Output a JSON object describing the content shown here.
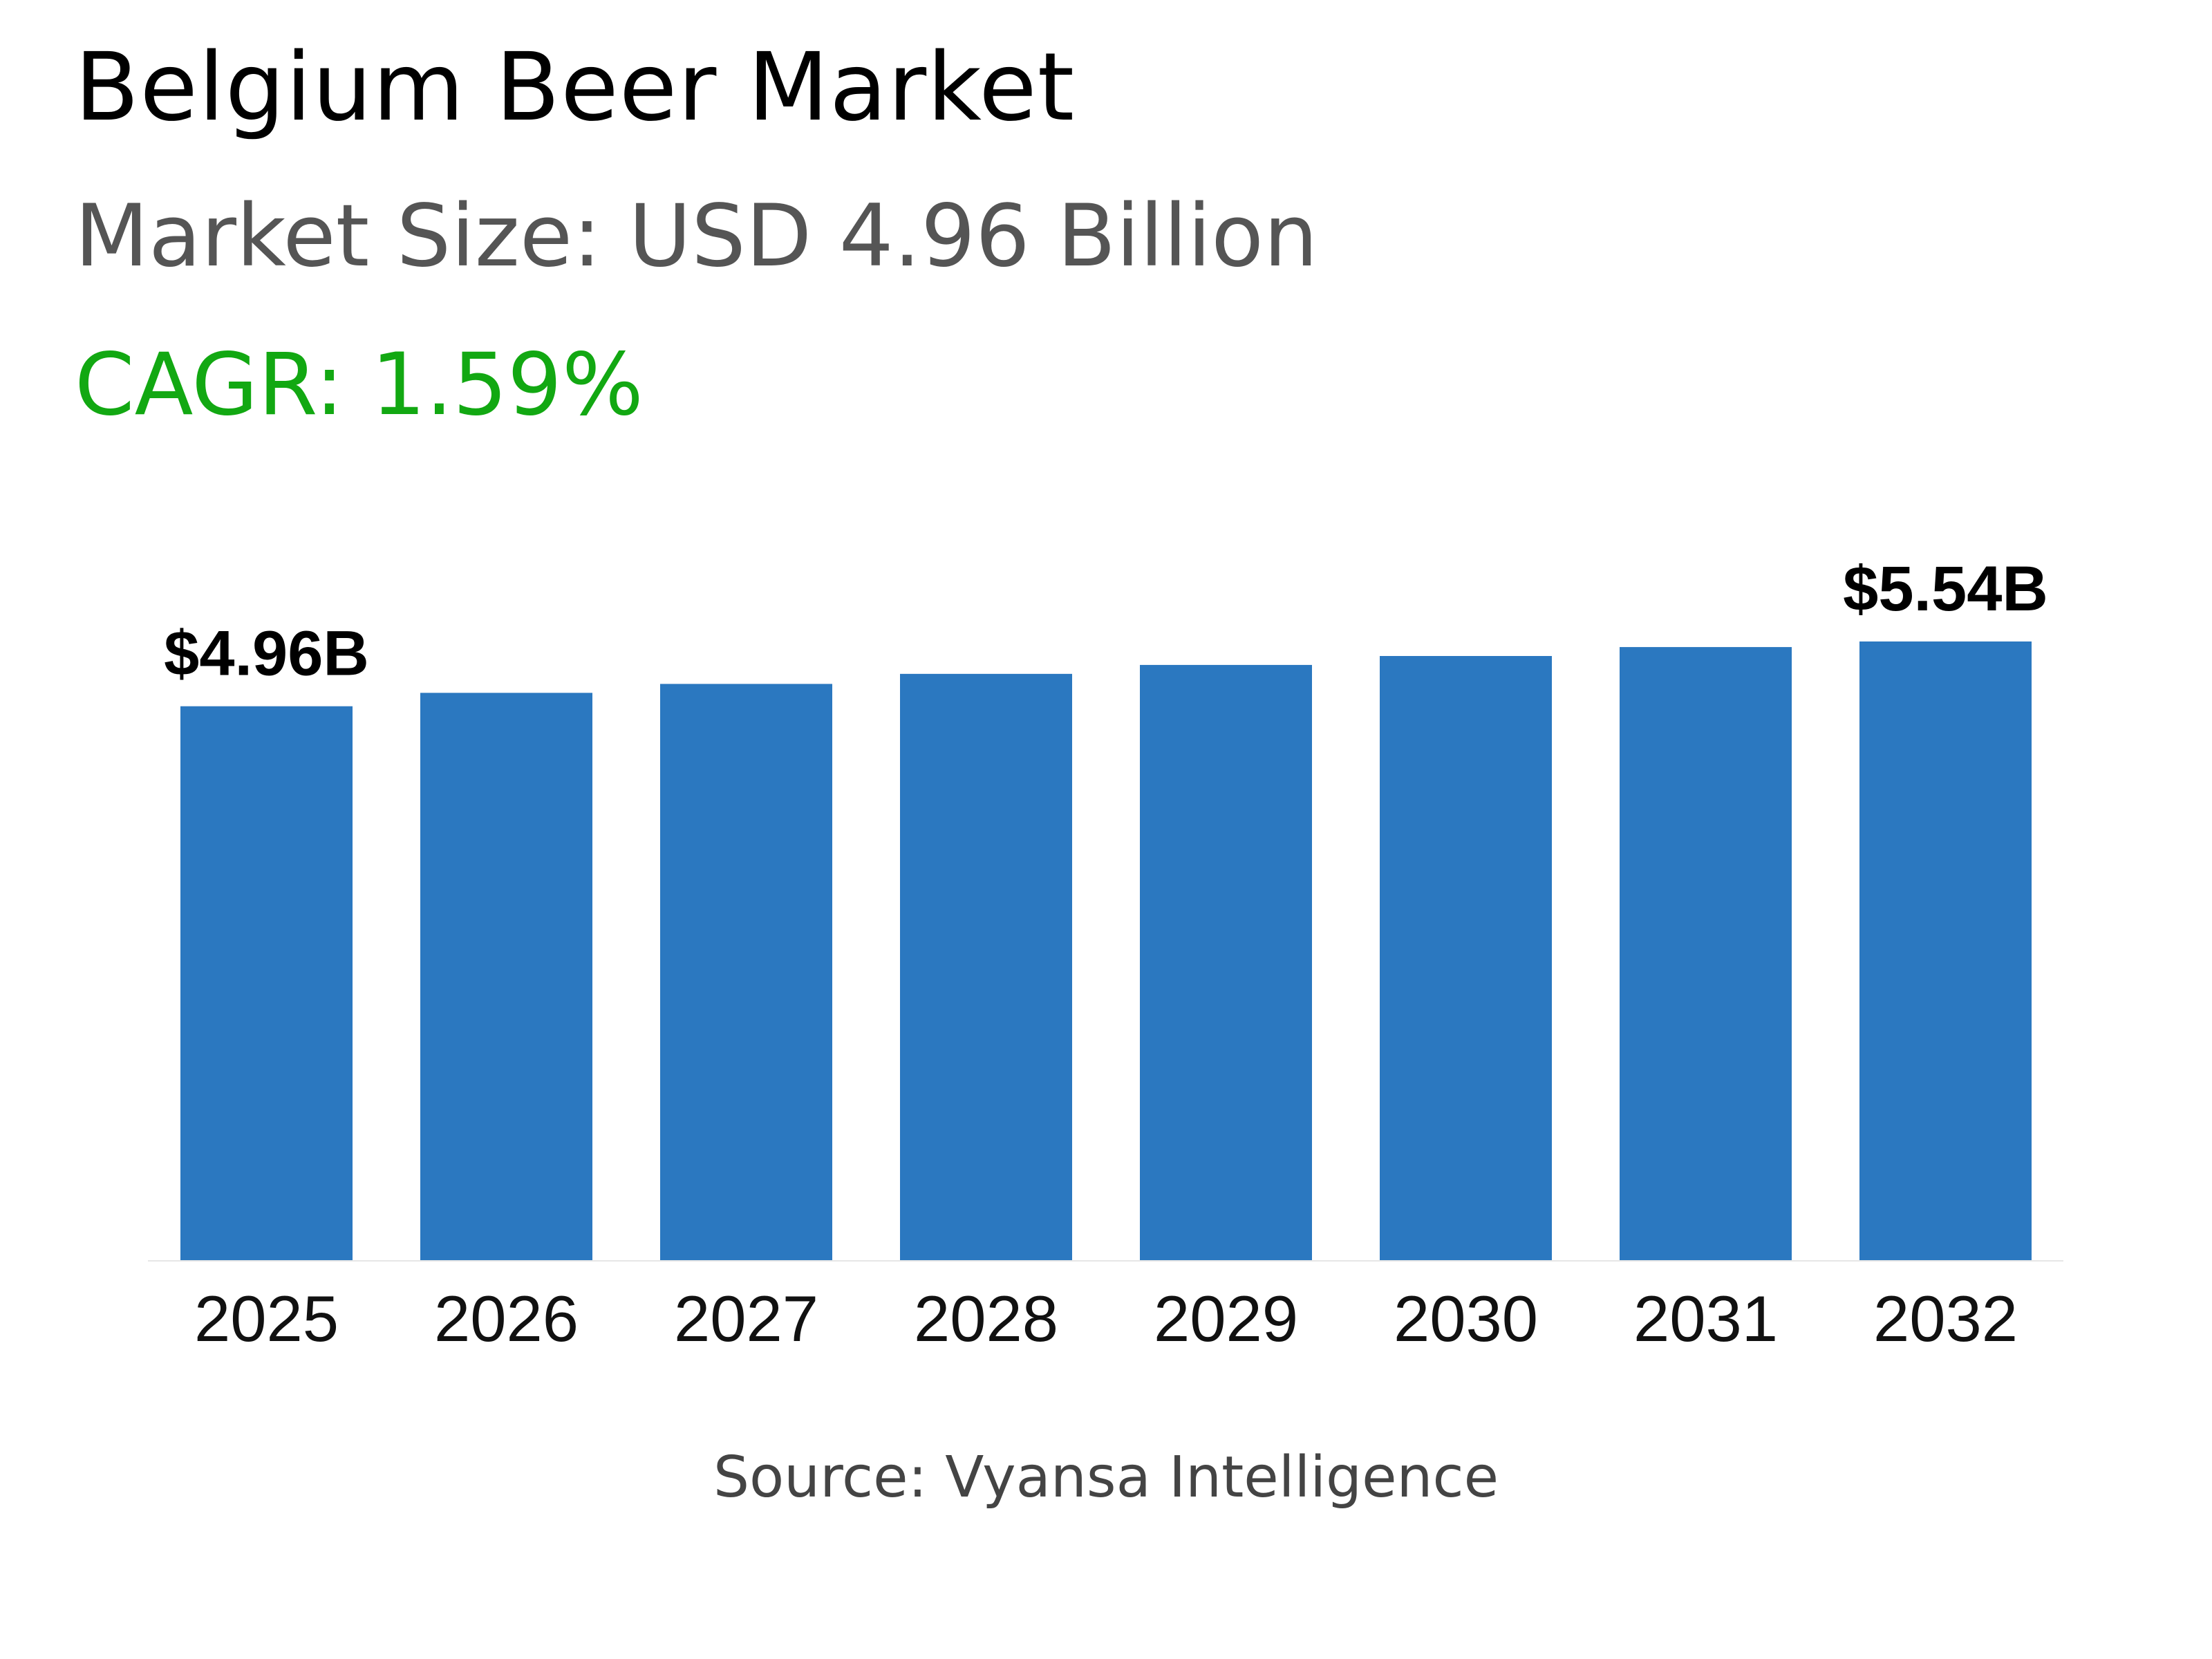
{
  "title": "Belgium Beer Market",
  "subtitle": "Market Size: USD 4.96 Billion",
  "cagr": "CAGR: 1.59%",
  "source": "Source: Vyansa Intelligence",
  "colors": {
    "bar": "#2b78c0",
    "cagr": "#12a812"
  },
  "chart_data": {
    "type": "bar",
    "categories": [
      "2025",
      "2026",
      "2027",
      "2028",
      "2029",
      "2030",
      "2031",
      "2032"
    ],
    "values": [
      4.96,
      5.08,
      5.16,
      5.25,
      5.33,
      5.41,
      5.49,
      5.54
    ],
    "data_labels": {
      "0": "$4.96B",
      "7": "$5.54B"
    },
    "ylim": [
      0,
      5.54
    ],
    "grid": false,
    "xlabel": "",
    "ylabel": ""
  }
}
